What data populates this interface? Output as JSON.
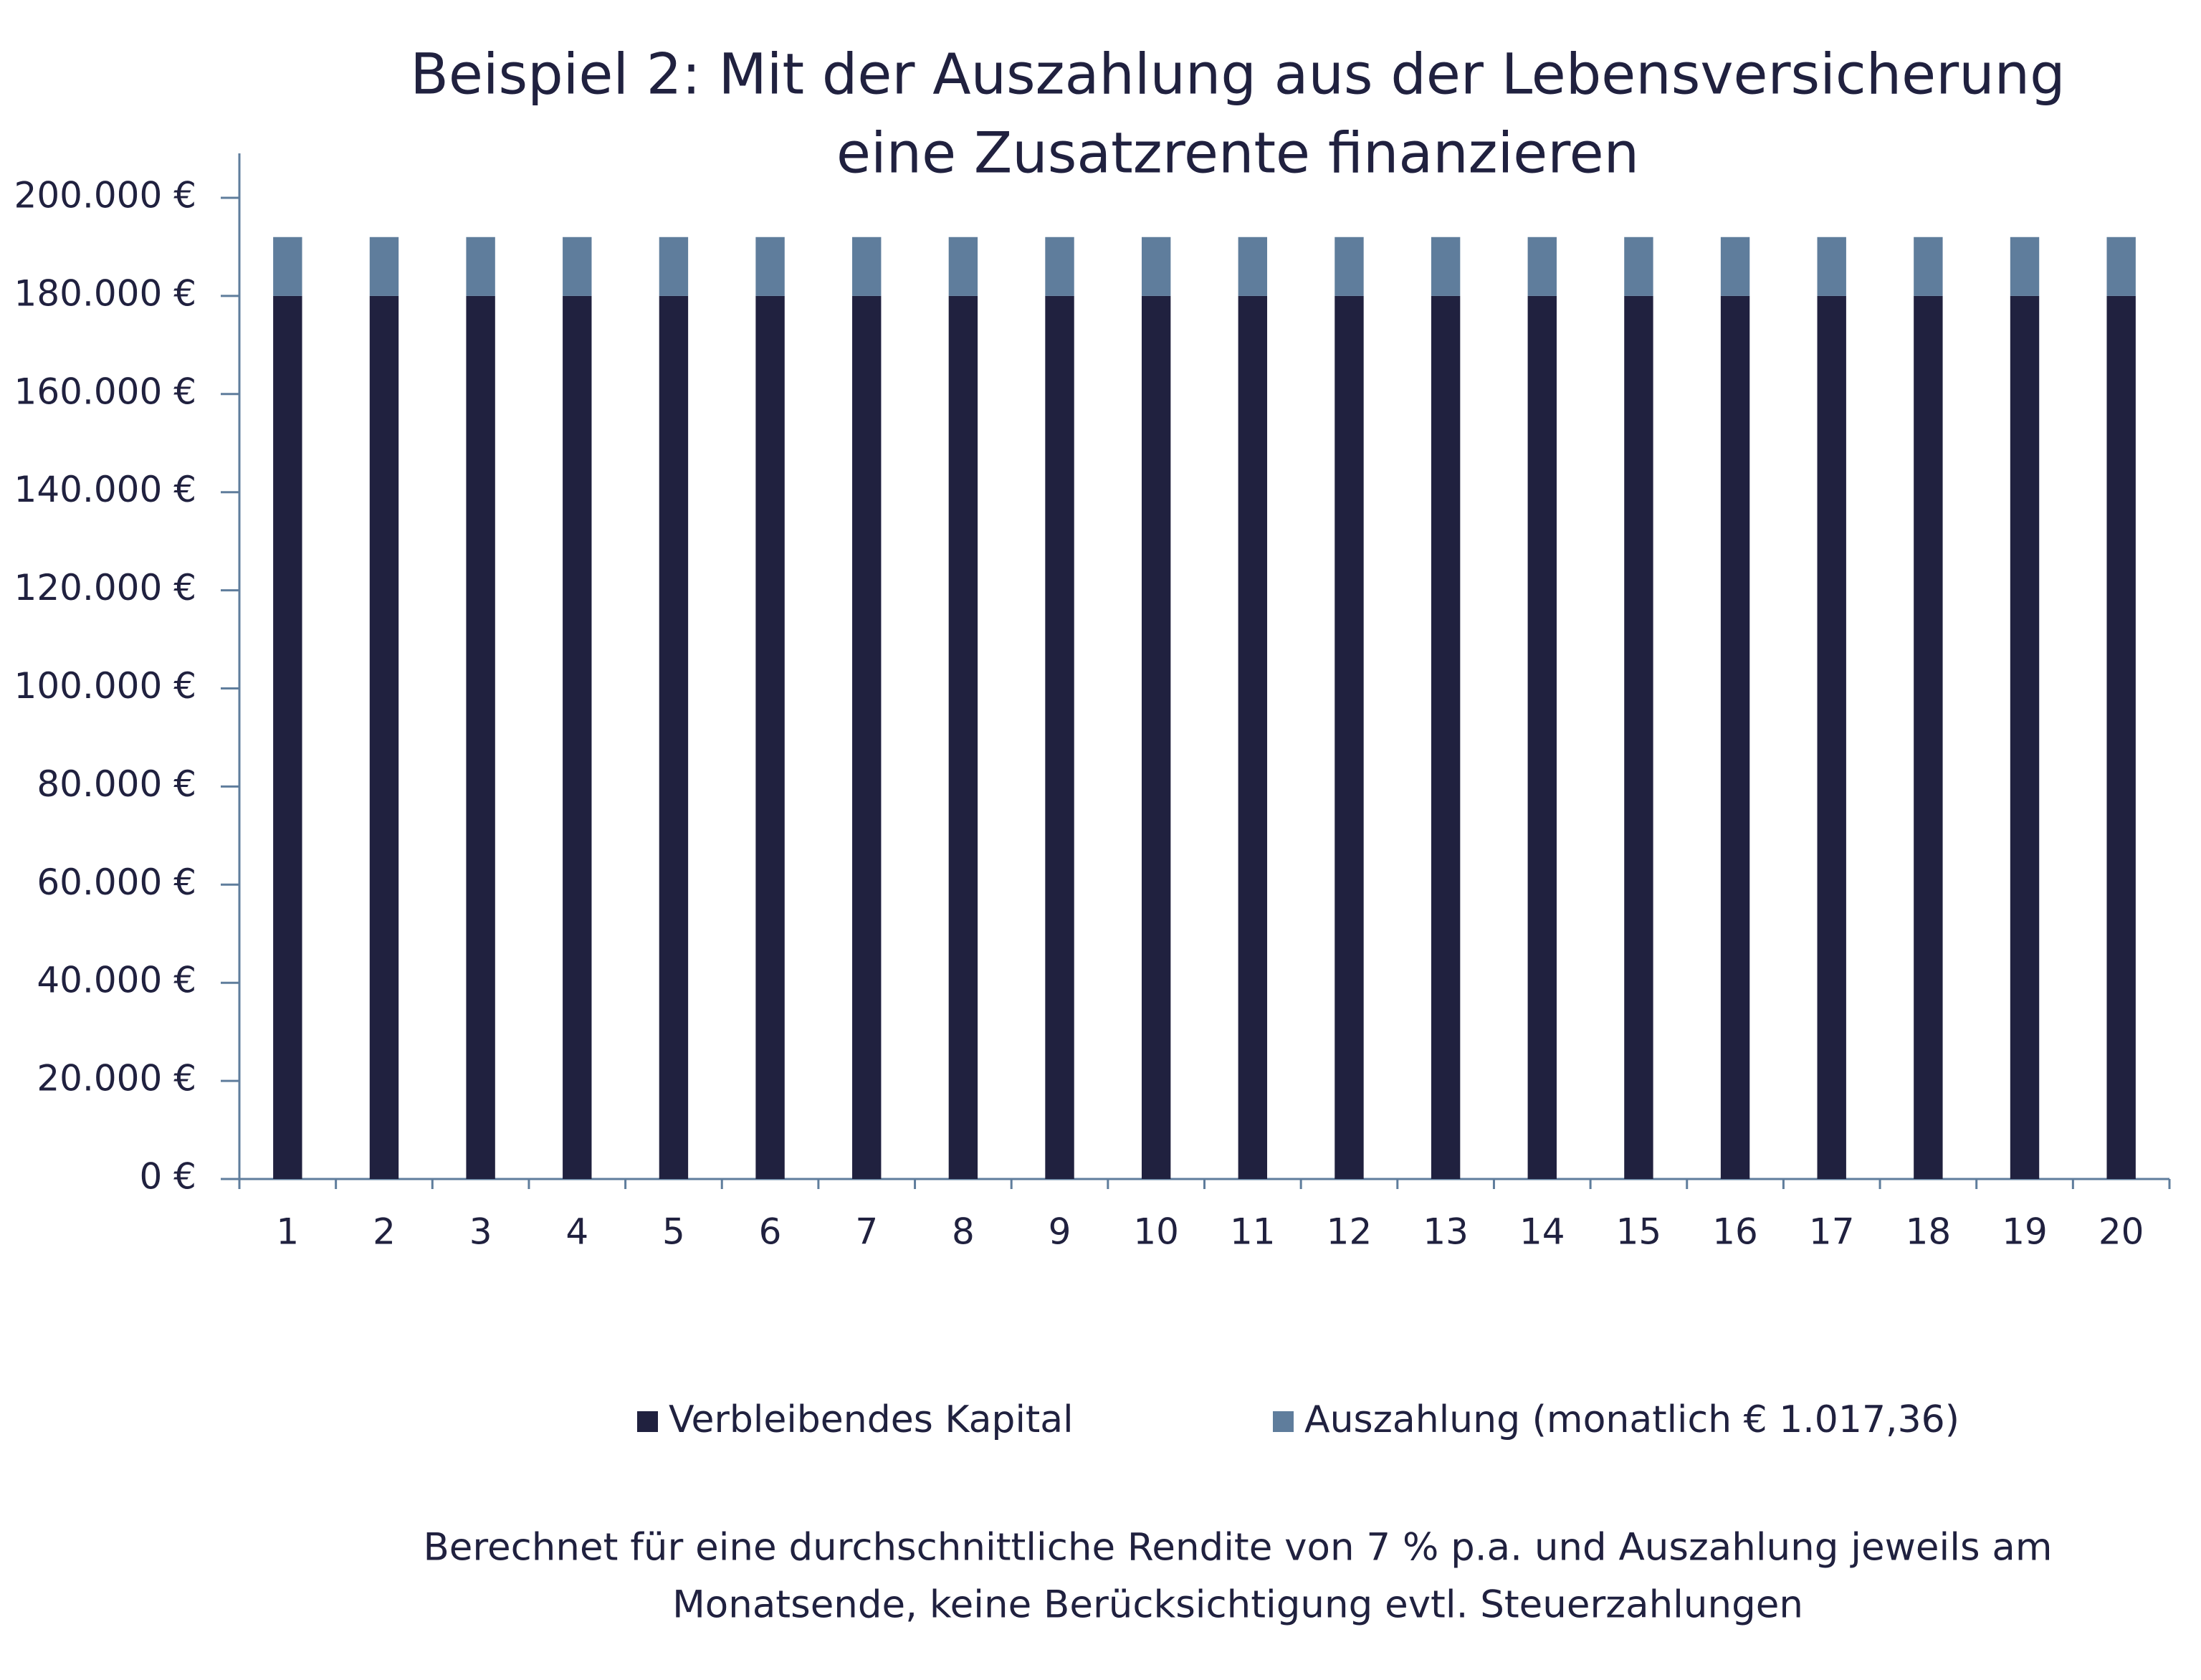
{
  "chart_data": {
    "type": "stacked-bar",
    "title": [
      "Beispiel 2: Mit der Auszahlung aus der Lebensversicherung",
      "eine Zusatzrente finanzieren"
    ],
    "categories": [
      "1",
      "2",
      "3",
      "4",
      "5",
      "6",
      "7",
      "8",
      "9",
      "10",
      "11",
      "12",
      "13",
      "14",
      "15",
      "16",
      "17",
      "18",
      "19",
      "20"
    ],
    "series": [
      {
        "name": "Verbleibendes Kapital",
        "color": "#20213f",
        "values": [
          180000,
          180000,
          180000,
          180000,
          180000,
          180000,
          180000,
          180000,
          180000,
          180000,
          180000,
          180000,
          180000,
          180000,
          180000,
          180000,
          180000,
          180000,
          180000,
          180000
        ]
      },
      {
        "name": "Auszahlung (monatlich € 1.017,36)",
        "color": "#5f7d9c",
        "values": [
          12000,
          12000,
          12000,
          12000,
          12000,
          12000,
          12000,
          12000,
          12000,
          12000,
          12000,
          12000,
          12000,
          12000,
          12000,
          12000,
          12000,
          12000,
          12000,
          12000
        ]
      }
    ],
    "ylim": [
      0,
      200000
    ],
    "yticks": [
      {
        "value": 0,
        "label": "0 €"
      },
      {
        "value": 20000,
        "label": "20.000 €"
      },
      {
        "value": 40000,
        "label": "40.000 €"
      },
      {
        "value": 60000,
        "label": "60.000 €"
      },
      {
        "value": 80000,
        "label": "80.000 €"
      },
      {
        "value": 100000,
        "label": "100.000 €"
      },
      {
        "value": 120000,
        "label": "120.000 €"
      },
      {
        "value": 140000,
        "label": "140.000 €"
      },
      {
        "value": 160000,
        "label": "160.000 €"
      },
      {
        "value": 180000,
        "label": "180.000 €"
      },
      {
        "value": 200000,
        "label": "200.000 €"
      }
    ],
    "legend": "bottom",
    "note": [
      "Berechnet für eine durchschnittliche Rendite von 7 % p.a. und Auszahlung jeweils am",
      "Monatsende, keine Berücksichtigung evtl. Steuerzahlungen"
    ]
  }
}
